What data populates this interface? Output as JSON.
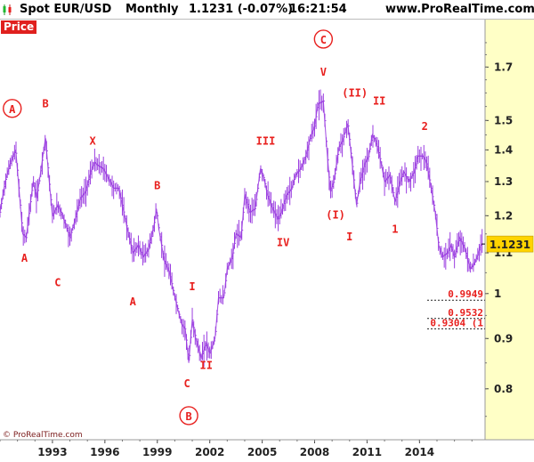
{
  "header": {
    "symbol": "Spot EUR/USD",
    "timeframe": "Monthly",
    "quote": "1.1231 (-0.07%)",
    "time": "16:21:54",
    "site": "www.ProRealTime.com"
  },
  "price_tag": "Price",
  "copyright": "© ProRealTime.com",
  "colors": {
    "price_line": "#9b3ee0",
    "annotation": "#e8201e",
    "axis_panel": "#ffffc6",
    "last_price_bg": "#ffd400"
  },
  "chart_data": {
    "type": "line",
    "scale": "log",
    "ylim": [
      0.71,
      1.9
    ],
    "xlim": [
      1990.0,
      2017.75
    ],
    "y_ticks": [
      "0.8",
      "0.9",
      "1",
      "1.1",
      "1.2",
      "1.3",
      "1.4",
      "1.5",
      "1.7"
    ],
    "y_tick_values": [
      0.8,
      0.9,
      1.0,
      1.1,
      1.2,
      1.3,
      1.4,
      1.5,
      1.7
    ],
    "x_ticks": [
      "1993",
      "1996",
      "1999",
      "2002",
      "2005",
      "2008",
      "2011",
      "2014"
    ],
    "x_tick_values": [
      1993,
      1996,
      1999,
      2002,
      2005,
      2008,
      2011,
      2014
    ],
    "last_price": "1.1231",
    "last_price_value": 1.1231,
    "grid": false,
    "series": [
      {
        "points": [
          [
            1990.0,
            1.21
          ],
          [
            1990.3,
            1.3
          ],
          [
            1990.6,
            1.36
          ],
          [
            1990.9,
            1.4
          ],
          [
            1991.1,
            1.27
          ],
          [
            1991.3,
            1.15
          ],
          [
            1991.5,
            1.14
          ],
          [
            1991.7,
            1.22
          ],
          [
            1991.9,
            1.3
          ],
          [
            1992.1,
            1.25
          ],
          [
            1992.3,
            1.32
          ],
          [
            1992.6,
            1.44
          ],
          [
            1992.8,
            1.31
          ],
          [
            1993.0,
            1.2
          ],
          [
            1993.3,
            1.23
          ],
          [
            1993.5,
            1.21
          ],
          [
            1993.8,
            1.17
          ],
          [
            1994.0,
            1.14
          ],
          [
            1994.3,
            1.19
          ],
          [
            1994.6,
            1.25
          ],
          [
            1994.9,
            1.27
          ],
          [
            1995.2,
            1.33
          ],
          [
            1995.4,
            1.36
          ],
          [
            1995.6,
            1.35
          ],
          [
            1995.9,
            1.34
          ],
          [
            1996.2,
            1.31
          ],
          [
            1996.5,
            1.28
          ],
          [
            1996.8,
            1.28
          ],
          [
            1997.0,
            1.23
          ],
          [
            1997.3,
            1.16
          ],
          [
            1997.6,
            1.1
          ],
          [
            1997.9,
            1.12
          ],
          [
            1998.2,
            1.09
          ],
          [
            1998.5,
            1.11
          ],
          [
            1998.8,
            1.17
          ],
          [
            1998.95,
            1.22
          ],
          [
            1999.1,
            1.16
          ],
          [
            1999.4,
            1.08
          ],
          [
            1999.7,
            1.05
          ],
          [
            1999.9,
            1.01
          ],
          [
            2000.2,
            0.96
          ],
          [
            2000.4,
            0.93
          ],
          [
            2000.6,
            0.92
          ],
          [
            2000.8,
            0.85
          ],
          [
            2001.0,
            0.94
          ],
          [
            2001.2,
            0.9
          ],
          [
            2001.5,
            0.86
          ],
          [
            2001.8,
            0.89
          ],
          [
            2002.0,
            0.87
          ],
          [
            2002.3,
            0.9
          ],
          [
            2002.5,
            0.99
          ],
          [
            2002.8,
            0.99
          ],
          [
            2003.0,
            1.06
          ],
          [
            2003.3,
            1.09
          ],
          [
            2003.5,
            1.15
          ],
          [
            2003.8,
            1.14
          ],
          [
            2004.0,
            1.26
          ],
          [
            2004.3,
            1.21
          ],
          [
            2004.6,
            1.22
          ],
          [
            2004.9,
            1.34
          ],
          [
            2005.1,
            1.31
          ],
          [
            2005.3,
            1.26
          ],
          [
            2005.6,
            1.22
          ],
          [
            2005.9,
            1.19
          ],
          [
            2006.1,
            1.21
          ],
          [
            2006.4,
            1.26
          ],
          [
            2006.7,
            1.28
          ],
          [
            2006.9,
            1.32
          ],
          [
            2007.2,
            1.34
          ],
          [
            2007.5,
            1.38
          ],
          [
            2007.8,
            1.45
          ],
          [
            2008.0,
            1.48
          ],
          [
            2008.2,
            1.56
          ],
          [
            2008.5,
            1.57
          ],
          [
            2008.7,
            1.4
          ],
          [
            2008.9,
            1.27
          ],
          [
            2009.1,
            1.3
          ],
          [
            2009.4,
            1.41
          ],
          [
            2009.6,
            1.43
          ],
          [
            2009.9,
            1.49
          ],
          [
            2010.1,
            1.38
          ],
          [
            2010.4,
            1.23
          ],
          [
            2010.6,
            1.3
          ],
          [
            2010.9,
            1.36
          ],
          [
            2011.1,
            1.38
          ],
          [
            2011.3,
            1.45
          ],
          [
            2011.5,
            1.43
          ],
          [
            2011.8,
            1.36
          ],
          [
            2012.0,
            1.3
          ],
          [
            2012.3,
            1.32
          ],
          [
            2012.6,
            1.24
          ],
          [
            2012.9,
            1.3
          ],
          [
            2013.1,
            1.33
          ],
          [
            2013.4,
            1.3
          ],
          [
            2013.7,
            1.33
          ],
          [
            2013.9,
            1.38
          ],
          [
            2014.2,
            1.38
          ],
          [
            2014.4,
            1.36
          ],
          [
            2014.7,
            1.27
          ],
          [
            2014.9,
            1.21
          ],
          [
            2015.1,
            1.12
          ],
          [
            2015.3,
            1.09
          ],
          [
            2015.6,
            1.1
          ],
          [
            2015.8,
            1.12
          ],
          [
            2016.0,
            1.09
          ],
          [
            2016.3,
            1.14
          ],
          [
            2016.6,
            1.11
          ],
          [
            2016.9,
            1.06
          ],
          [
            2017.1,
            1.07
          ],
          [
            2017.3,
            1.09
          ],
          [
            2017.5,
            1.12
          ],
          [
            2017.6,
            1.1231
          ]
        ]
      }
    ],
    "annotations": [
      {
        "text": "A",
        "x": 1990.7,
        "y": 1.53,
        "circled": true
      },
      {
        "text": "B",
        "x": 1992.6,
        "y": 1.55
      },
      {
        "text": "X",
        "x": 1995.3,
        "y": 1.42
      },
      {
        "text": "A",
        "x": 1991.4,
        "y": 1.08
      },
      {
        "text": "C",
        "x": 1993.3,
        "y": 1.02
      },
      {
        "text": "A",
        "x": 1997.6,
        "y": 0.975
      },
      {
        "text": "B",
        "x": 1999.0,
        "y": 1.28
      },
      {
        "text": "I",
        "x": 2001.0,
        "y": 1.01
      },
      {
        "text": "II",
        "x": 2001.8,
        "y": 0.84
      },
      {
        "text": "C",
        "x": 2000.7,
        "y": 0.805
      },
      {
        "text": "B",
        "x": 2000.8,
        "y": 0.745,
        "circled": true
      },
      {
        "text": "III",
        "x": 2005.2,
        "y": 1.42
      },
      {
        "text": "IV",
        "x": 2006.2,
        "y": 1.12
      },
      {
        "text": "C",
        "x": 2008.5,
        "y": 1.8,
        "circled": true
      },
      {
        "text": "V",
        "x": 2008.5,
        "y": 1.67
      },
      {
        "text": "(II)",
        "x": 2010.3,
        "y": 1.59
      },
      {
        "text": "II",
        "x": 2011.7,
        "y": 1.56
      },
      {
        "text": "(I)",
        "x": 2009.2,
        "y": 1.195
      },
      {
        "text": "I",
        "x": 2010.0,
        "y": 1.135
      },
      {
        "text": "1",
        "x": 2012.6,
        "y": 1.155
      },
      {
        "text": "2",
        "x": 2014.3,
        "y": 1.47
      }
    ],
    "levels": [
      {
        "label": "0.9949",
        "y": 0.9949
      },
      {
        "label": "0.9532",
        "y": 0.9532
      },
      {
        "label": "0.9304 (1",
        "y": 0.9304
      }
    ]
  }
}
